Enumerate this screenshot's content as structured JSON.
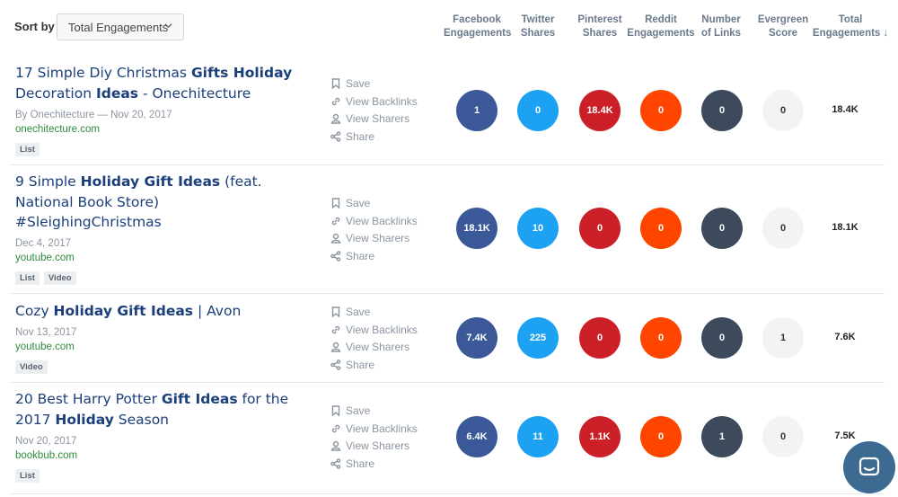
{
  "header": {
    "sort_label": "Sort by",
    "sort_value": "Total Engagements",
    "columns": {
      "facebook": [
        "Facebook",
        "Engagements"
      ],
      "twitter": [
        "Twitter",
        "Shares"
      ],
      "pinterest": [
        "Pinterest",
        "Shares"
      ],
      "reddit": [
        "Reddit",
        "Engagements"
      ],
      "links": [
        "Number",
        "of Links"
      ],
      "evergreen": [
        "Evergreen",
        "Score"
      ],
      "total": [
        "Total",
        "Engagements"
      ],
      "total_arrow": "↓"
    }
  },
  "actions": {
    "save": "Save",
    "backlinks": "View Backlinks",
    "sharers": "View Sharers",
    "share": "Share"
  },
  "rows": [
    {
      "title_parts": [
        "17 Simple Diy Christmas ",
        "Gifts Holiday",
        " Decoration ",
        "Ideas",
        " - Onechitecture"
      ],
      "meta": "By Onechitecture — Nov 20, 2017",
      "domain": "onechitecture.com",
      "tags": [
        "List"
      ],
      "facebook": "1",
      "twitter": "0",
      "pinterest": "18.4K",
      "reddit": "0",
      "links": "0",
      "evergreen": "0",
      "total": "18.4K"
    },
    {
      "title_parts": [
        "9 Simple ",
        "Holiday Gift Ideas",
        " (feat. National Book Store) #SleighingChristmas"
      ],
      "meta": "Dec 4, 2017",
      "domain": "youtube.com",
      "tags": [
        "List",
        "Video"
      ],
      "facebook": "18.1K",
      "twitter": "10",
      "pinterest": "0",
      "reddit": "0",
      "links": "0",
      "evergreen": "0",
      "total": "18.1K"
    },
    {
      "title_parts": [
        "Cozy ",
        "Holiday Gift Ideas",
        " | Avon"
      ],
      "meta": "Nov 13, 2017",
      "domain": "youtube.com",
      "tags": [
        "Video"
      ],
      "facebook": "7.4K",
      "twitter": "225",
      "pinterest": "0",
      "reddit": "0",
      "links": "0",
      "evergreen": "1",
      "total": "7.6K"
    },
    {
      "title_parts": [
        "20 Best Harry Potter ",
        "Gift Ideas",
        " for the 2017 ",
        "Holiday",
        " Season"
      ],
      "meta": "Nov 20, 2017",
      "domain": "bookbub.com",
      "tags": [
        "List"
      ],
      "facebook": "6.4K",
      "twitter": "11",
      "pinterest": "1.1K",
      "reddit": "0",
      "links": "1",
      "evergreen": "0",
      "total": "7.5K"
    }
  ],
  "colors": {
    "facebook": "#3b5998",
    "twitter": "#1da1f2",
    "pinterest": "#cb2027",
    "reddit": "#ff4500",
    "links": "#3d4a5c",
    "evergreen": "#f2f3f4",
    "title": "#1b3f7a",
    "domain": "#2e8b3b"
  },
  "icons": {
    "save": "bookmark-icon",
    "backlinks": "link-icon",
    "sharers": "user-icon",
    "share": "share-icon",
    "chat": "chat-icon",
    "sort": "chevron-down-icon"
  }
}
